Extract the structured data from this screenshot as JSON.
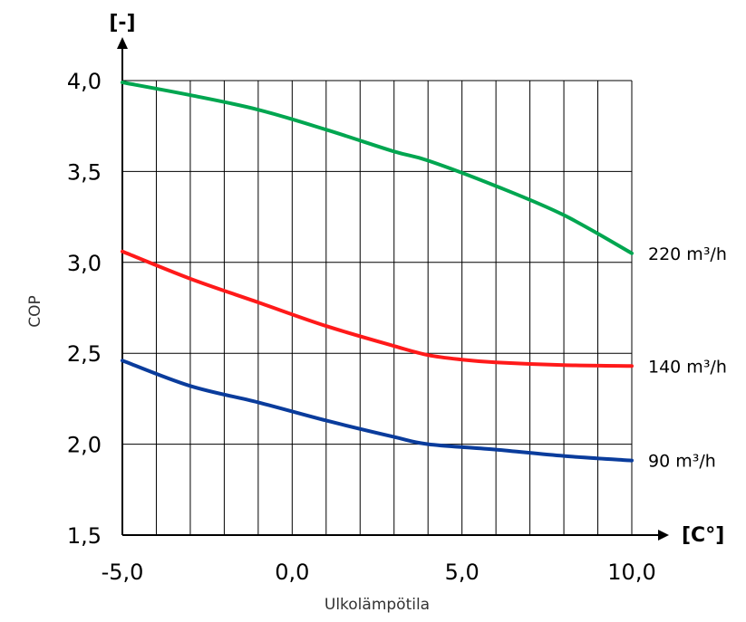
{
  "chart_data": {
    "type": "line",
    "xlabel": "Ulkolämpötila",
    "ylabel": "COP",
    "x_unit": "[C°]",
    "y_unit": "[-]",
    "xlim": [
      -5,
      10
    ],
    "ylim": [
      1.5,
      4.0
    ],
    "x_ticks": [
      {
        "value": -5,
        "label": "-5,0"
      },
      {
        "value": 0,
        "label": "0,0"
      },
      {
        "value": 5,
        "label": "5,0"
      },
      {
        "value": 10,
        "label": "10,0"
      }
    ],
    "y_ticks": [
      {
        "value": 1.5,
        "label": "1,5"
      },
      {
        "value": 2.0,
        "label": "2,0"
      },
      {
        "value": 2.5,
        "label": "2,5"
      },
      {
        "value": 3.0,
        "label": "3,0"
      },
      {
        "value": 3.5,
        "label": "3,5"
      },
      {
        "value": 4.0,
        "label": "4,0"
      }
    ],
    "grid": {
      "x_step": 1,
      "y_step": 0.5
    },
    "series": [
      {
        "name": "220 m³/h",
        "color": "#00a650",
        "points": [
          [
            -5,
            3.99
          ],
          [
            -3,
            3.92
          ],
          [
            -1,
            3.84
          ],
          [
            1,
            3.73
          ],
          [
            3,
            3.61
          ],
          [
            4,
            3.56
          ],
          [
            6,
            3.42
          ],
          [
            8,
            3.26
          ],
          [
            10,
            3.05
          ]
        ]
      },
      {
        "name": "140 m³/h",
        "color": "#ff1a1a",
        "points": [
          [
            -5,
            3.06
          ],
          [
            -3,
            2.91
          ],
          [
            -1,
            2.78
          ],
          [
            1,
            2.65
          ],
          [
            3,
            2.54
          ],
          [
            4,
            2.49
          ],
          [
            5,
            2.465
          ],
          [
            6,
            2.45
          ],
          [
            8,
            2.435
          ],
          [
            10,
            2.43
          ]
        ]
      },
      {
        "name": "90 m³/h",
        "color": "#0a3c9c",
        "points": [
          [
            -5,
            2.46
          ],
          [
            -3,
            2.32
          ],
          [
            -1,
            2.23
          ],
          [
            1,
            2.13
          ],
          [
            3,
            2.04
          ],
          [
            4,
            2.0
          ],
          [
            6,
            1.97
          ],
          [
            8,
            1.935
          ],
          [
            10,
            1.91
          ]
        ]
      }
    ]
  }
}
